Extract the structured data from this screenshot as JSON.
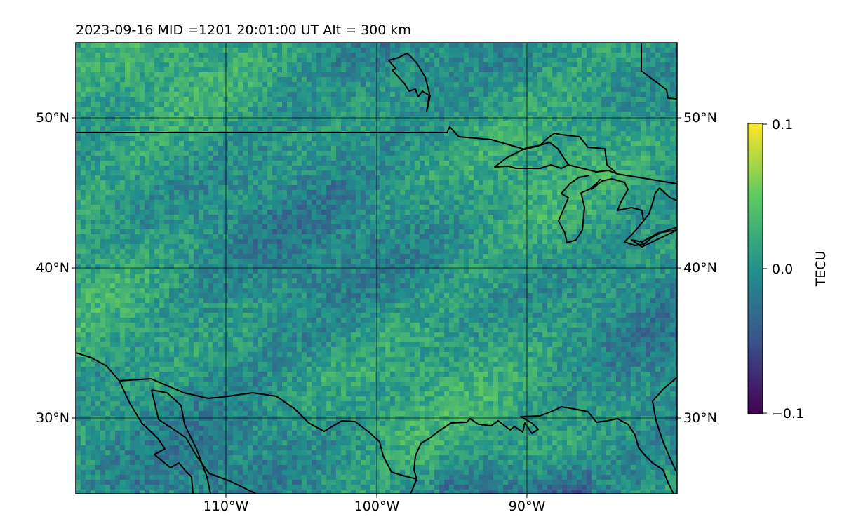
{
  "map": {
    "title": "2023-09-16  MID =1201    20:01:00  UT  Alt = 300 km",
    "lon_range": [
      -120,
      -80
    ],
    "lat_range": [
      25,
      55
    ],
    "gridlines_lon": [
      -110,
      -100,
      -90
    ],
    "gridlines_lat": [
      30,
      40,
      50
    ],
    "lon_tick_labels": [
      "110°W",
      "100°W",
      "90°W"
    ],
    "lat_tick_labels_left": [
      "30°N",
      "40°N",
      "50°N"
    ],
    "lat_tick_labels_right": [
      "30°N",
      "40°N",
      "50°N"
    ],
    "field_colormap": "viridis",
    "coastline_color": "#000000"
  },
  "colorbar": {
    "label": "TECU",
    "tick_labels": [
      "0.1",
      "0.0",
      "−0.1"
    ],
    "tick_values": [
      0.1,
      0.0,
      -0.1
    ],
    "range": [
      -0.1,
      0.1
    ],
    "colormap": [
      "#440154",
      "#3b528b",
      "#21918c",
      "#5ec962",
      "#fde725"
    ]
  }
}
